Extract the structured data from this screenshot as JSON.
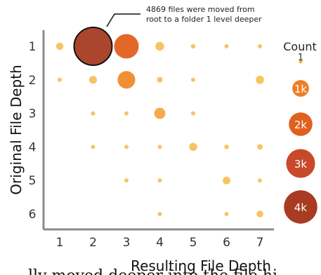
{
  "chart_data": {
    "type": "scatter",
    "subtype": "bubble",
    "xlabel": "Resulting File Depth",
    "ylabel": "Original File Depth",
    "x_ticks": [
      "1",
      "2",
      "3",
      "4",
      "5",
      "6",
      "7"
    ],
    "y_ticks": [
      "1",
      "2",
      "3",
      "4",
      "5",
      "6"
    ],
    "xlim": [
      1,
      7
    ],
    "ylim": [
      1,
      6
    ],
    "y_inverted": true,
    "grid": false,
    "size_encoding": "count",
    "color_scale": [
      "#f7c15a",
      "#f0892c",
      "#e0601f",
      "#c0432a",
      "#a83b22"
    ],
    "points": [
      {
        "x": 1,
        "y": 1,
        "count": 180
      },
      {
        "x": 2,
        "y": 1,
        "count": 4869
      },
      {
        "x": 3,
        "y": 1,
        "count": 2050
      },
      {
        "x": 4,
        "y": 1,
        "count": 260
      },
      {
        "x": 5,
        "y": 1,
        "count": 70
      },
      {
        "x": 6,
        "y": 1,
        "count": 45
      },
      {
        "x": 7,
        "y": 1,
        "count": 40
      },
      {
        "x": 1,
        "y": 2,
        "count": 20
      },
      {
        "x": 2,
        "y": 2,
        "count": 210
      },
      {
        "x": 3,
        "y": 2,
        "count": 1050
      },
      {
        "x": 4,
        "y": 2,
        "count": 110
      },
      {
        "x": 5,
        "y": 2,
        "count": 30
      },
      {
        "x": 7,
        "y": 2,
        "count": 230
      },
      {
        "x": 2,
        "y": 3,
        "count": 60
      },
      {
        "x": 3,
        "y": 3,
        "count": 45
      },
      {
        "x": 4,
        "y": 3,
        "count": 420
      },
      {
        "x": 5,
        "y": 3,
        "count": 45
      },
      {
        "x": 2,
        "y": 4,
        "count": 60
      },
      {
        "x": 3,
        "y": 4,
        "count": 40
      },
      {
        "x": 4,
        "y": 4,
        "count": 50
      },
      {
        "x": 5,
        "y": 4,
        "count": 220
      },
      {
        "x": 6,
        "y": 4,
        "count": 70
      },
      {
        "x": 7,
        "y": 4,
        "count": 100
      },
      {
        "x": 3,
        "y": 5,
        "count": 30
      },
      {
        "x": 4,
        "y": 5,
        "count": 20
      },
      {
        "x": 6,
        "y": 5,
        "count": 200
      },
      {
        "x": 7,
        "y": 5,
        "count": 30
      },
      {
        "x": 4,
        "y": 6,
        "count": 30
      },
      {
        "x": 6,
        "y": 6,
        "count": 20
      },
      {
        "x": 7,
        "y": 6,
        "count": 150
      }
    ],
    "legend": {
      "title": "Count",
      "placement": "right",
      "entries": [
        {
          "label": "1",
          "count": 1,
          "color": "#f0b33a"
        },
        {
          "label": "1k",
          "count": 1000,
          "color": "#f07d22"
        },
        {
          "label": "2k",
          "count": 2000,
          "color": "#e0601f"
        },
        {
          "label": "3k",
          "count": 3000,
          "color": "#c8482a"
        },
        {
          "label": "4k",
          "count": 4000,
          "color": "#a83b22"
        }
      ]
    },
    "annotation": {
      "line1": "4869 files were moved from",
      "line2": "root to a folder 1 level deeper",
      "target_x": 2,
      "target_y": 1
    },
    "clipped_caption": "lly moved deeper into the file hi"
  }
}
